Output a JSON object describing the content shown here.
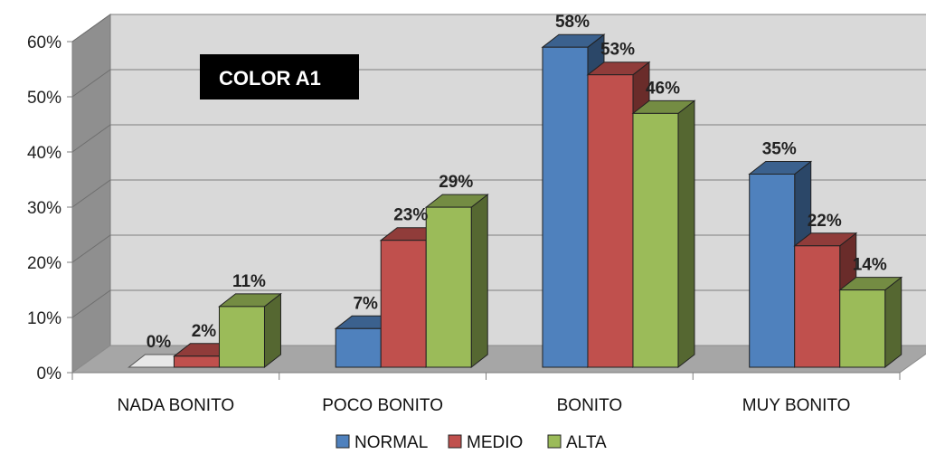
{
  "chart_data": {
    "type": "bar",
    "title": "COLOR A1",
    "categories": [
      "NADA BONITO",
      "POCO BONITO",
      "BONITO",
      "MUY BONITO"
    ],
    "series": [
      {
        "name": "NORMAL",
        "values": [
          0,
          7,
          58,
          35
        ],
        "color": "#4F81BD"
      },
      {
        "name": "MEDIO",
        "values": [
          2,
          23,
          53,
          22
        ],
        "color": "#C0504D"
      },
      {
        "name": "ALTA",
        "values": [
          11,
          29,
          46,
          14
        ],
        "color": "#9BBB59"
      }
    ],
    "data_labels": [
      [
        "0%",
        "7%",
        "58%",
        "35%"
      ],
      [
        "2%",
        "23%",
        "53%",
        "22%"
      ],
      [
        "11%",
        "29%",
        "46%",
        "14%"
      ]
    ],
    "ylim": [
      0,
      60
    ],
    "yticks": [
      "0%",
      "10%",
      "20%",
      "30%",
      "40%",
      "50%",
      "60%"
    ],
    "xlabel": "",
    "ylabel": "",
    "grid": true,
    "legend_position": "bottom",
    "style": "3d-clustered-column"
  }
}
